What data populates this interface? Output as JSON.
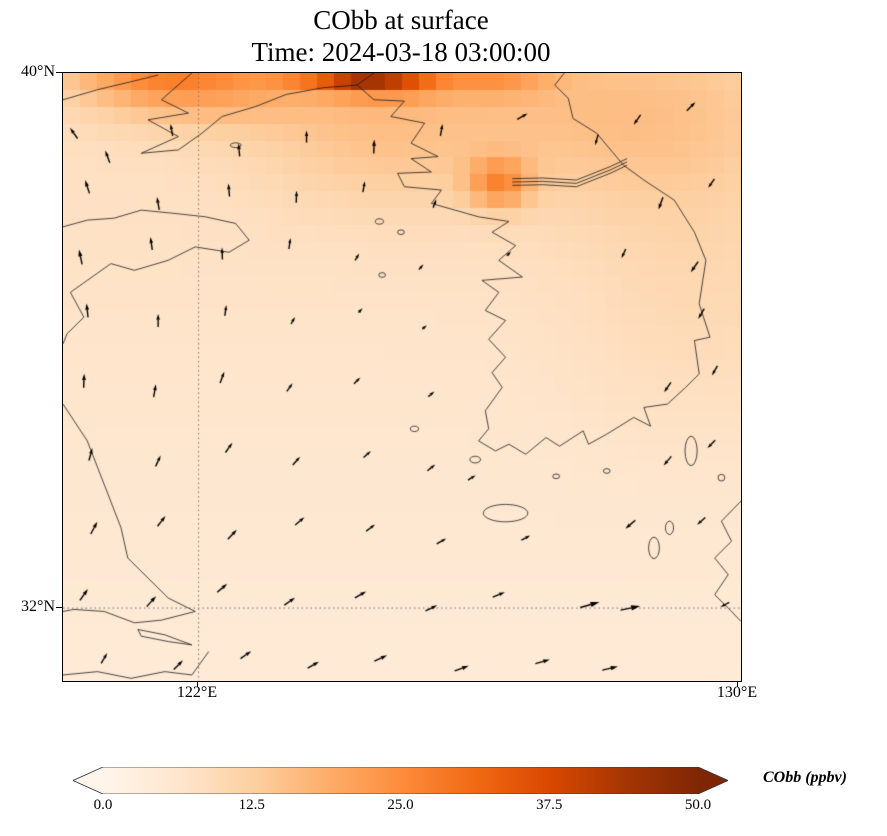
{
  "figure": {
    "title_line1": "CObb at surface",
    "title_line2": "Time: 2024-03-18 03:00:00"
  },
  "axes": {
    "yticks": [
      {
        "label": "40°N",
        "lat": 40
      },
      {
        "label": "32°N",
        "lat": 32
      }
    ],
    "xticks": [
      {
        "label": "122°E",
        "lon": 122
      },
      {
        "label": "130°E",
        "lon": 130
      }
    ]
  },
  "colorbar": {
    "label": "CObb (ppbv)",
    "ticks": [
      "0.0",
      "12.5",
      "25.0",
      "37.5",
      "50.0"
    ],
    "tick_values": [
      0,
      12.5,
      25,
      37.5,
      50
    ],
    "vmin": 0,
    "vmax": 50,
    "extend": "both",
    "colors": [
      "#fff5eb",
      "#fee6ce",
      "#fdd0a2",
      "#fdae6b",
      "#fd8d3c",
      "#f16913",
      "#d94801",
      "#a63603",
      "#7f2704"
    ]
  },
  "chart_data": {
    "type": "heatmap",
    "title": "CObb at surface",
    "time": "2024-03-18 03:00:00",
    "variable": "CObb",
    "units": "ppbv",
    "level": "surface",
    "colormap": "Oranges",
    "colorbar_range": [
      0,
      50
    ],
    "colorbar_ticks": [
      0,
      12.5,
      25,
      37.5,
      50
    ],
    "extent": {
      "lon_min": 119.99,
      "lon_max": 130.04,
      "lat_min": 30.91,
      "lat_max": 40.0
    },
    "gridline_lons": [
      122
    ],
    "gridline_lats": [
      32
    ],
    "grid_cells": [
      40,
      36
    ],
    "base_field": {
      "offset": 4.5,
      "north_amp": 4.0
    },
    "plumes": {
      "fields": [
        "lon",
        "lat",
        "amp_ppbv",
        "sigma_lon",
        "sigma_lat"
      ],
      "values": [
        [
          124.35,
          40.3,
          62,
          0.42,
          0.3
        ],
        [
          123.55,
          40.4,
          40,
          0.38,
          0.28
        ],
        [
          125.05,
          40.15,
          26,
          0.45,
          0.3
        ],
        [
          126.35,
          40.25,
          18,
          0.6,
          0.35
        ],
        [
          121.3,
          40.15,
          14,
          0.9,
          0.45
        ],
        [
          122.4,
          39.95,
          10,
          1.1,
          0.5
        ],
        [
          126.45,
          38.35,
          15,
          0.32,
          0.26
        ],
        [
          128.2,
          39.4,
          7,
          1.9,
          1.0
        ],
        [
          124.6,
          39.1,
          6,
          1.3,
          0.8
        ],
        [
          129.4,
          36.9,
          3,
          1.3,
          1.6
        ]
      ]
    },
    "wind_vectors": {
      "fields": [
        "lon",
        "lat",
        "dir_deg_ccw_from_east",
        "length_px"
      ],
      "values": [
        [
          120.15,
          39.1,
          125,
          13
        ],
        [
          120.65,
          38.75,
          110,
          13
        ],
        [
          121.6,
          39.15,
          100,
          12
        ],
        [
          122.6,
          38.85,
          95,
          13
        ],
        [
          123.6,
          39.05,
          90,
          12
        ],
        [
          124.6,
          38.9,
          88,
          14
        ],
        [
          125.6,
          39.15,
          80,
          12
        ],
        [
          126.8,
          39.35,
          30,
          12
        ],
        [
          127.9,
          39.0,
          255,
          11
        ],
        [
          128.5,
          39.3,
          235,
          12
        ],
        [
          129.3,
          39.5,
          45,
          12
        ],
        [
          120.35,
          38.3,
          108,
          14
        ],
        [
          121.4,
          38.05,
          100,
          13
        ],
        [
          122.45,
          38.25,
          95,
          13
        ],
        [
          123.45,
          38.15,
          88,
          12
        ],
        [
          124.45,
          38.3,
          80,
          11
        ],
        [
          125.5,
          38.05,
          70,
          9
        ],
        [
          128.85,
          38.05,
          250,
          13
        ],
        [
          129.6,
          38.35,
          235,
          11
        ],
        [
          120.25,
          37.25,
          102,
          15
        ],
        [
          121.3,
          37.45,
          98,
          13
        ],
        [
          122.35,
          37.3,
          92,
          12
        ],
        [
          123.35,
          37.45,
          82,
          11
        ],
        [
          124.35,
          37.25,
          60,
          8
        ],
        [
          125.3,
          37.1,
          50,
          7
        ],
        [
          126.6,
          37.3,
          45,
          6
        ],
        [
          128.3,
          37.3,
          245,
          10
        ],
        [
          129.35,
          37.1,
          235,
          13
        ],
        [
          120.35,
          36.45,
          96,
          14
        ],
        [
          121.4,
          36.3,
          90,
          13
        ],
        [
          122.4,
          36.45,
          82,
          11
        ],
        [
          123.4,
          36.3,
          60,
          8
        ],
        [
          124.4,
          36.45,
          45,
          6
        ],
        [
          125.35,
          36.2,
          40,
          6
        ],
        [
          129.45,
          36.4,
          240,
          12
        ],
        [
          120.3,
          35.4,
          88,
          14
        ],
        [
          121.35,
          35.25,
          80,
          13
        ],
        [
          122.35,
          35.45,
          70,
          12
        ],
        [
          123.35,
          35.3,
          55,
          10
        ],
        [
          124.35,
          35.4,
          45,
          9
        ],
        [
          125.45,
          35.2,
          40,
          8
        ],
        [
          128.95,
          35.3,
          235,
          12
        ],
        [
          129.65,
          35.55,
          240,
          11
        ],
        [
          120.4,
          34.3,
          75,
          13
        ],
        [
          121.4,
          34.2,
          65,
          12
        ],
        [
          122.45,
          34.4,
          55,
          12
        ],
        [
          123.45,
          34.2,
          48,
          11
        ],
        [
          124.5,
          34.3,
          42,
          10
        ],
        [
          125.45,
          34.1,
          38,
          10
        ],
        [
          126.05,
          33.95,
          32,
          9
        ],
        [
          128.95,
          34.2,
          230,
          12
        ],
        [
          129.6,
          34.45,
          225,
          11
        ],
        [
          120.45,
          33.2,
          62,
          14
        ],
        [
          121.45,
          33.3,
          52,
          13
        ],
        [
          122.5,
          33.1,
          46,
          13
        ],
        [
          123.5,
          33.3,
          40,
          12
        ],
        [
          124.55,
          33.2,
          36,
          11
        ],
        [
          125.6,
          33.0,
          30,
          11
        ],
        [
          126.85,
          33.05,
          28,
          10
        ],
        [
          128.4,
          33.25,
          220,
          13
        ],
        [
          129.45,
          33.3,
          222,
          11
        ],
        [
          120.3,
          32.2,
          55,
          14
        ],
        [
          121.3,
          32.1,
          48,
          14
        ],
        [
          122.35,
          32.3,
          40,
          13
        ],
        [
          123.35,
          32.1,
          35,
          13
        ],
        [
          124.4,
          32.2,
          30,
          13
        ],
        [
          125.45,
          32.0,
          26,
          13
        ],
        [
          126.45,
          32.2,
          22,
          13
        ],
        [
          127.8,
          32.05,
          16,
          20
        ],
        [
          128.4,
          32.0,
          12,
          20
        ],
        [
          129.8,
          32.05,
          208,
          10
        ],
        [
          120.6,
          31.25,
          60,
          12
        ],
        [
          121.7,
          31.15,
          45,
          13
        ],
        [
          122.7,
          31.3,
          35,
          13
        ],
        [
          123.7,
          31.15,
          30,
          13
        ],
        [
          124.7,
          31.25,
          25,
          14
        ],
        [
          125.9,
          31.1,
          20,
          15
        ],
        [
          127.1,
          31.2,
          16,
          15
        ],
        [
          128.1,
          31.1,
          13,
          16
        ]
      ]
    },
    "coastlines": [
      [
        [
          124.35,
          39.82
        ],
        [
          124.6,
          39.6
        ],
        [
          125.05,
          39.58
        ],
        [
          124.85,
          39.35
        ],
        [
          125.35,
          39.25
        ],
        [
          125.15,
          38.95
        ],
        [
          125.55,
          38.75
        ],
        [
          125.15,
          38.72
        ],
        [
          125.45,
          38.52
        ],
        [
          124.95,
          38.5
        ],
        [
          125.05,
          38.3
        ],
        [
          125.6,
          38.25
        ],
        [
          125.45,
          38.05
        ],
        [
          126.15,
          37.85
        ],
        [
          126.6,
          37.78
        ],
        [
          126.35,
          37.62
        ],
        [
          126.7,
          37.42
        ],
        [
          126.45,
          37.2
        ],
        [
          126.8,
          36.95
        ],
        [
          126.2,
          36.9
        ],
        [
          126.45,
          36.72
        ],
        [
          126.25,
          36.45
        ],
        [
          126.55,
          36.3
        ],
        [
          126.3,
          36.02
        ],
        [
          126.55,
          35.75
        ],
        [
          126.35,
          35.52
        ],
        [
          126.5,
          35.3
        ],
        [
          126.25,
          34.95
        ],
        [
          126.3,
          34.68
        ],
        [
          126.15,
          34.5
        ],
        [
          126.4,
          34.35
        ],
        [
          126.6,
          34.45
        ],
        [
          126.85,
          34.3
        ],
        [
          127.15,
          34.55
        ],
        [
          127.35,
          34.42
        ],
        [
          127.7,
          34.65
        ],
        [
          127.78,
          34.45
        ],
        [
          128.05,
          34.6
        ],
        [
          128.45,
          34.85
        ],
        [
          128.7,
          34.72
        ],
        [
          128.6,
          35.0
        ],
        [
          128.95,
          35.05
        ],
        [
          129.22,
          35.3
        ],
        [
          129.42,
          35.5
        ],
        [
          129.35,
          36.0
        ],
        [
          129.58,
          36.05
        ],
        [
          129.42,
          36.55
        ],
        [
          129.52,
          37.2
        ],
        [
          129.35,
          37.62
        ],
        [
          129.05,
          38.1
        ],
        [
          128.6,
          38.4
        ],
        [
          128.3,
          38.62
        ],
        [
          127.9,
          39.1
        ],
        [
          127.55,
          39.32
        ],
        [
          127.48,
          39.62
        ],
        [
          127.28,
          39.82
        ],
        [
          127.42,
          40.0
        ]
      ],
      [
        [
          121.9,
          40.0
        ],
        [
          121.45,
          39.6
        ],
        [
          121.85,
          39.4
        ],
        [
          121.25,
          39.3
        ],
        [
          121.7,
          39.05
        ],
        [
          121.15,
          38.8
        ],
        [
          121.7,
          38.85
        ],
        [
          122.05,
          39.1
        ],
        [
          122.35,
          39.35
        ],
        [
          122.85,
          39.5
        ],
        [
          123.3,
          39.68
        ],
        [
          123.85,
          39.78
        ],
        [
          124.35,
          39.82
        ]
      ],
      [
        [
          119.99,
          39.6
        ],
        [
          120.5,
          39.75
        ],
        [
          121.0,
          39.87
        ],
        [
          121.4,
          39.97
        ]
      ],
      [
        [
          119.99,
          37.7
        ],
        [
          120.35,
          37.8
        ],
        [
          120.75,
          37.83
        ],
        [
          121.15,
          37.95
        ],
        [
          121.65,
          37.9
        ],
        [
          122.1,
          37.85
        ],
        [
          122.55,
          37.75
        ],
        [
          122.75,
          37.5
        ],
        [
          122.45,
          37.32
        ],
        [
          121.95,
          37.4
        ],
        [
          121.55,
          37.2
        ],
        [
          121.05,
          37.05
        ],
        [
          120.7,
          37.15
        ],
        [
          120.35,
          36.9
        ],
        [
          120.1,
          36.72
        ],
        [
          120.3,
          36.35
        ],
        [
          120.05,
          36.1
        ],
        [
          119.99,
          35.95
        ]
      ],
      [
        [
          119.99,
          35.05
        ],
        [
          120.35,
          34.5
        ],
        [
          120.6,
          33.85
        ],
        [
          120.85,
          33.2
        ],
        [
          120.95,
          32.75
        ],
        [
          121.25,
          32.45
        ],
        [
          121.55,
          32.15
        ],
        [
          121.95,
          31.95
        ],
        [
          121.45,
          31.82
        ],
        [
          121.05,
          31.78
        ],
        [
          120.6,
          31.95
        ],
        [
          120.15,
          31.98
        ],
        [
          119.99,
          31.95
        ]
      ],
      [
        [
          119.99,
          31.0
        ],
        [
          120.5,
          31.05
        ],
        [
          121.0,
          30.95
        ],
        [
          121.5,
          31.05
        ],
        [
          121.9,
          31.0
        ],
        [
          122.15,
          31.35
        ]
      ],
      [
        [
          121.1,
          31.68
        ],
        [
          121.5,
          31.6
        ],
        [
          121.9,
          31.45
        ],
        [
          121.55,
          31.5
        ],
        [
          121.15,
          31.58
        ],
        [
          121.1,
          31.68
        ]
      ],
      [
        [
          130.04,
          33.6
        ],
        [
          129.75,
          33.3
        ],
        [
          129.9,
          33.0
        ],
        [
          129.65,
          32.75
        ],
        [
          129.85,
          32.5
        ],
        [
          129.65,
          32.2
        ],
        [
          129.9,
          31.95
        ],
        [
          130.04,
          31.8
        ]
      ],
      [
        [
          126.65,
          38.32
        ],
        [
          127.1,
          38.33
        ],
        [
          127.6,
          38.3
        ],
        [
          128.1,
          38.5
        ],
        [
          128.35,
          38.62
        ]
      ],
      [
        [
          126.65,
          38.37
        ],
        [
          127.1,
          38.38
        ],
        [
          127.6,
          38.35
        ],
        [
          128.1,
          38.55
        ],
        [
          128.35,
          38.67
        ]
      ],
      [
        [
          126.65,
          38.42
        ],
        [
          127.1,
          38.43
        ],
        [
          127.6,
          38.4
        ],
        [
          128.1,
          38.6
        ],
        [
          128.35,
          38.72
        ]
      ],
      [
        [
          124.35,
          39.82
        ],
        [
          124.6,
          40.0
        ]
      ]
    ],
    "islands": {
      "fields": [
        "lon",
        "lat",
        "r_lon",
        "r_lat"
      ],
      "values": [
        [
          126.55,
          33.42,
          0.33,
          0.13
        ],
        [
          129.3,
          34.35,
          0.09,
          0.22
        ],
        [
          128.75,
          32.9,
          0.08,
          0.16
        ],
        [
          128.98,
          33.2,
          0.06,
          0.1
        ],
        [
          122.55,
          38.92,
          0.08,
          0.035
        ],
        [
          124.68,
          37.78,
          0.06,
          0.04
        ],
        [
          125.0,
          37.62,
          0.05,
          0.035
        ],
        [
          124.72,
          36.98,
          0.05,
          0.035
        ],
        [
          125.2,
          34.68,
          0.06,
          0.04
        ],
        [
          126.1,
          34.22,
          0.08,
          0.05
        ],
        [
          127.3,
          33.97,
          0.05,
          0.035
        ],
        [
          128.05,
          34.05,
          0.05,
          0.035
        ],
        [
          129.75,
          33.95,
          0.05,
          0.05
        ]
      ]
    }
  }
}
